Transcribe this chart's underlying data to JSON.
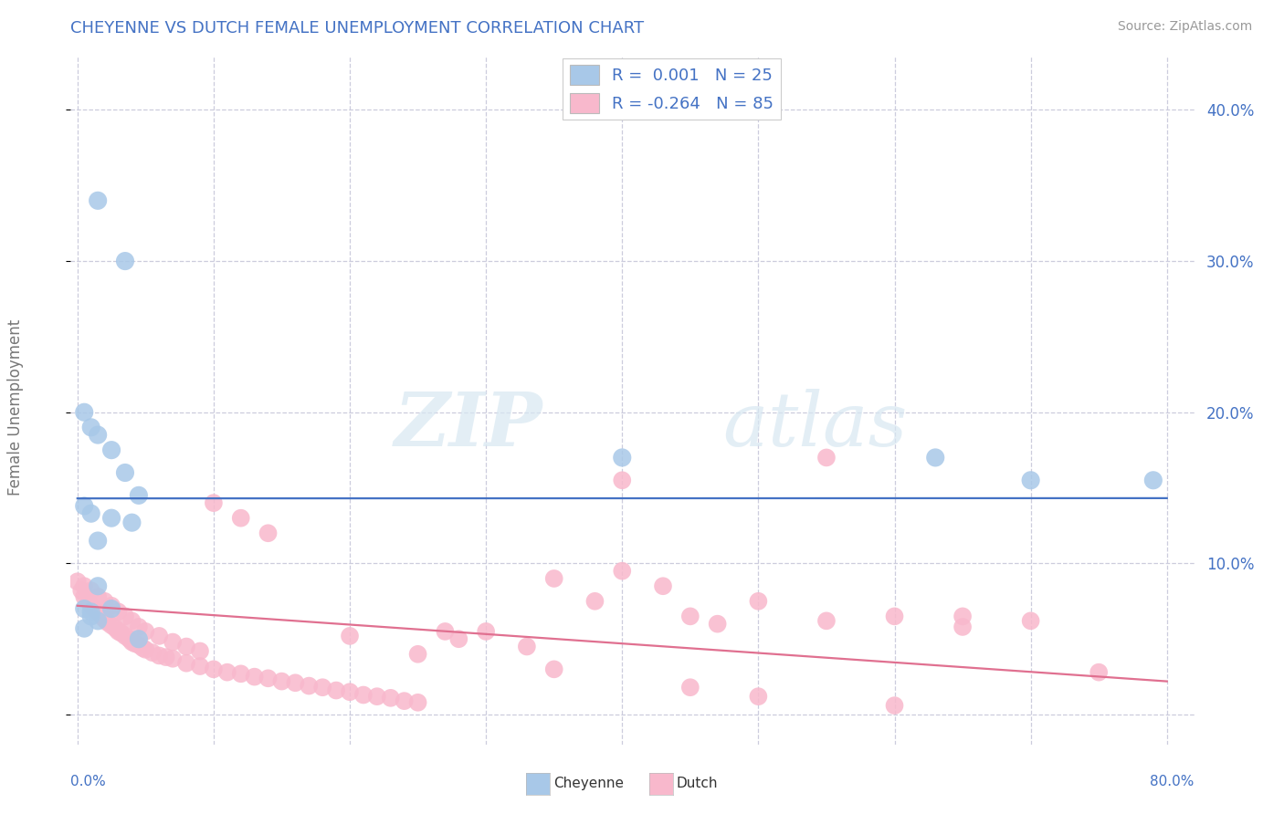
{
  "title": "CHEYENNE VS DUTCH FEMALE UNEMPLOYMENT CORRELATION CHART",
  "source_text": "Source: ZipAtlas.com",
  "ylabel": "Female Unemployment",
  "watermark_zip": "ZIP",
  "watermark_atlas": "atlas",
  "xlim": [
    -0.005,
    0.82
  ],
  "ylim": [
    -0.02,
    0.435
  ],
  "xticks": [
    0.0,
    0.1,
    0.2,
    0.3,
    0.4,
    0.5,
    0.6,
    0.7,
    0.8
  ],
  "yticks": [
    0.0,
    0.1,
    0.2,
    0.3,
    0.4
  ],
  "xtick_labels_bottom": [
    "0.0%",
    "",
    "",
    "",
    "",
    "",
    "",
    "",
    "80.0%"
  ],
  "ytick_labels_right": [
    "",
    "10.0%",
    "20.0%",
    "30.0%",
    "40.0%"
  ],
  "cheyenne_color": "#a8c8e8",
  "dutch_color": "#f8b8cc",
  "cheyenne_line_color": "#4472c4",
  "dutch_line_color": "#e07090",
  "legend_text_color": "#4472c4",
  "legend_label_color": "#333333",
  "R_cheyenne": 0.001,
  "N_cheyenne": 25,
  "R_dutch": -0.264,
  "N_dutch": 85,
  "title_color": "#4472c4",
  "source_color": "#999999",
  "grid_color": "#ccccdd",
  "cheyenne_line_y_at_0": 0.143,
  "dutch_line_y_at_0": 0.072,
  "dutch_line_y_at_80": 0.022,
  "cheyenne_x": [
    0.015,
    0.035,
    0.005,
    0.01,
    0.015,
    0.025,
    0.035,
    0.045,
    0.005,
    0.01,
    0.025,
    0.04,
    0.015,
    0.025,
    0.01,
    0.63,
    0.7,
    0.79,
    0.005,
    0.01,
    0.015,
    0.005,
    0.045,
    0.4,
    0.015
  ],
  "cheyenne_y": [
    0.34,
    0.3,
    0.2,
    0.19,
    0.185,
    0.175,
    0.16,
    0.145,
    0.138,
    0.133,
    0.13,
    0.127,
    0.085,
    0.07,
    0.065,
    0.17,
    0.155,
    0.155,
    0.07,
    0.068,
    0.062,
    0.057,
    0.05,
    0.17,
    0.115
  ],
  "dutch_x": [
    0.003,
    0.005,
    0.008,
    0.01,
    0.012,
    0.015,
    0.018,
    0.02,
    0.022,
    0.025,
    0.028,
    0.03,
    0.032,
    0.035,
    0.038,
    0.04,
    0.042,
    0.045,
    0.048,
    0.05,
    0.055,
    0.06,
    0.065,
    0.07,
    0.08,
    0.09,
    0.1,
    0.11,
    0.12,
    0.13,
    0.14,
    0.15,
    0.16,
    0.17,
    0.18,
    0.19,
    0.2,
    0.21,
    0.22,
    0.23,
    0.24,
    0.25,
    0.27,
    0.28,
    0.3,
    0.33,
    0.35,
    0.38,
    0.4,
    0.43,
    0.45,
    0.47,
    0.5,
    0.55,
    0.6,
    0.65,
    0.7,
    0.75,
    0.0,
    0.005,
    0.01,
    0.015,
    0.02,
    0.025,
    0.03,
    0.035,
    0.04,
    0.045,
    0.05,
    0.06,
    0.07,
    0.08,
    0.09,
    0.1,
    0.12,
    0.14,
    0.2,
    0.25,
    0.35,
    0.45,
    0.5,
    0.6,
    0.4,
    0.55,
    0.65
  ],
  "dutch_y": [
    0.082,
    0.078,
    0.075,
    0.072,
    0.07,
    0.068,
    0.065,
    0.063,
    0.061,
    0.059,
    0.057,
    0.055,
    0.054,
    0.052,
    0.05,
    0.048,
    0.047,
    0.046,
    0.044,
    0.043,
    0.041,
    0.039,
    0.038,
    0.037,
    0.034,
    0.032,
    0.03,
    0.028,
    0.027,
    0.025,
    0.024,
    0.022,
    0.021,
    0.019,
    0.018,
    0.016,
    0.015,
    0.013,
    0.012,
    0.011,
    0.009,
    0.008,
    0.055,
    0.05,
    0.055,
    0.045,
    0.09,
    0.075,
    0.095,
    0.085,
    0.065,
    0.06,
    0.075,
    0.062,
    0.065,
    0.058,
    0.062,
    0.028,
    0.088,
    0.085,
    0.082,
    0.078,
    0.075,
    0.072,
    0.068,
    0.065,
    0.062,
    0.058,
    0.055,
    0.052,
    0.048,
    0.045,
    0.042,
    0.14,
    0.13,
    0.12,
    0.052,
    0.04,
    0.03,
    0.018,
    0.012,
    0.006,
    0.155,
    0.17,
    0.065
  ]
}
